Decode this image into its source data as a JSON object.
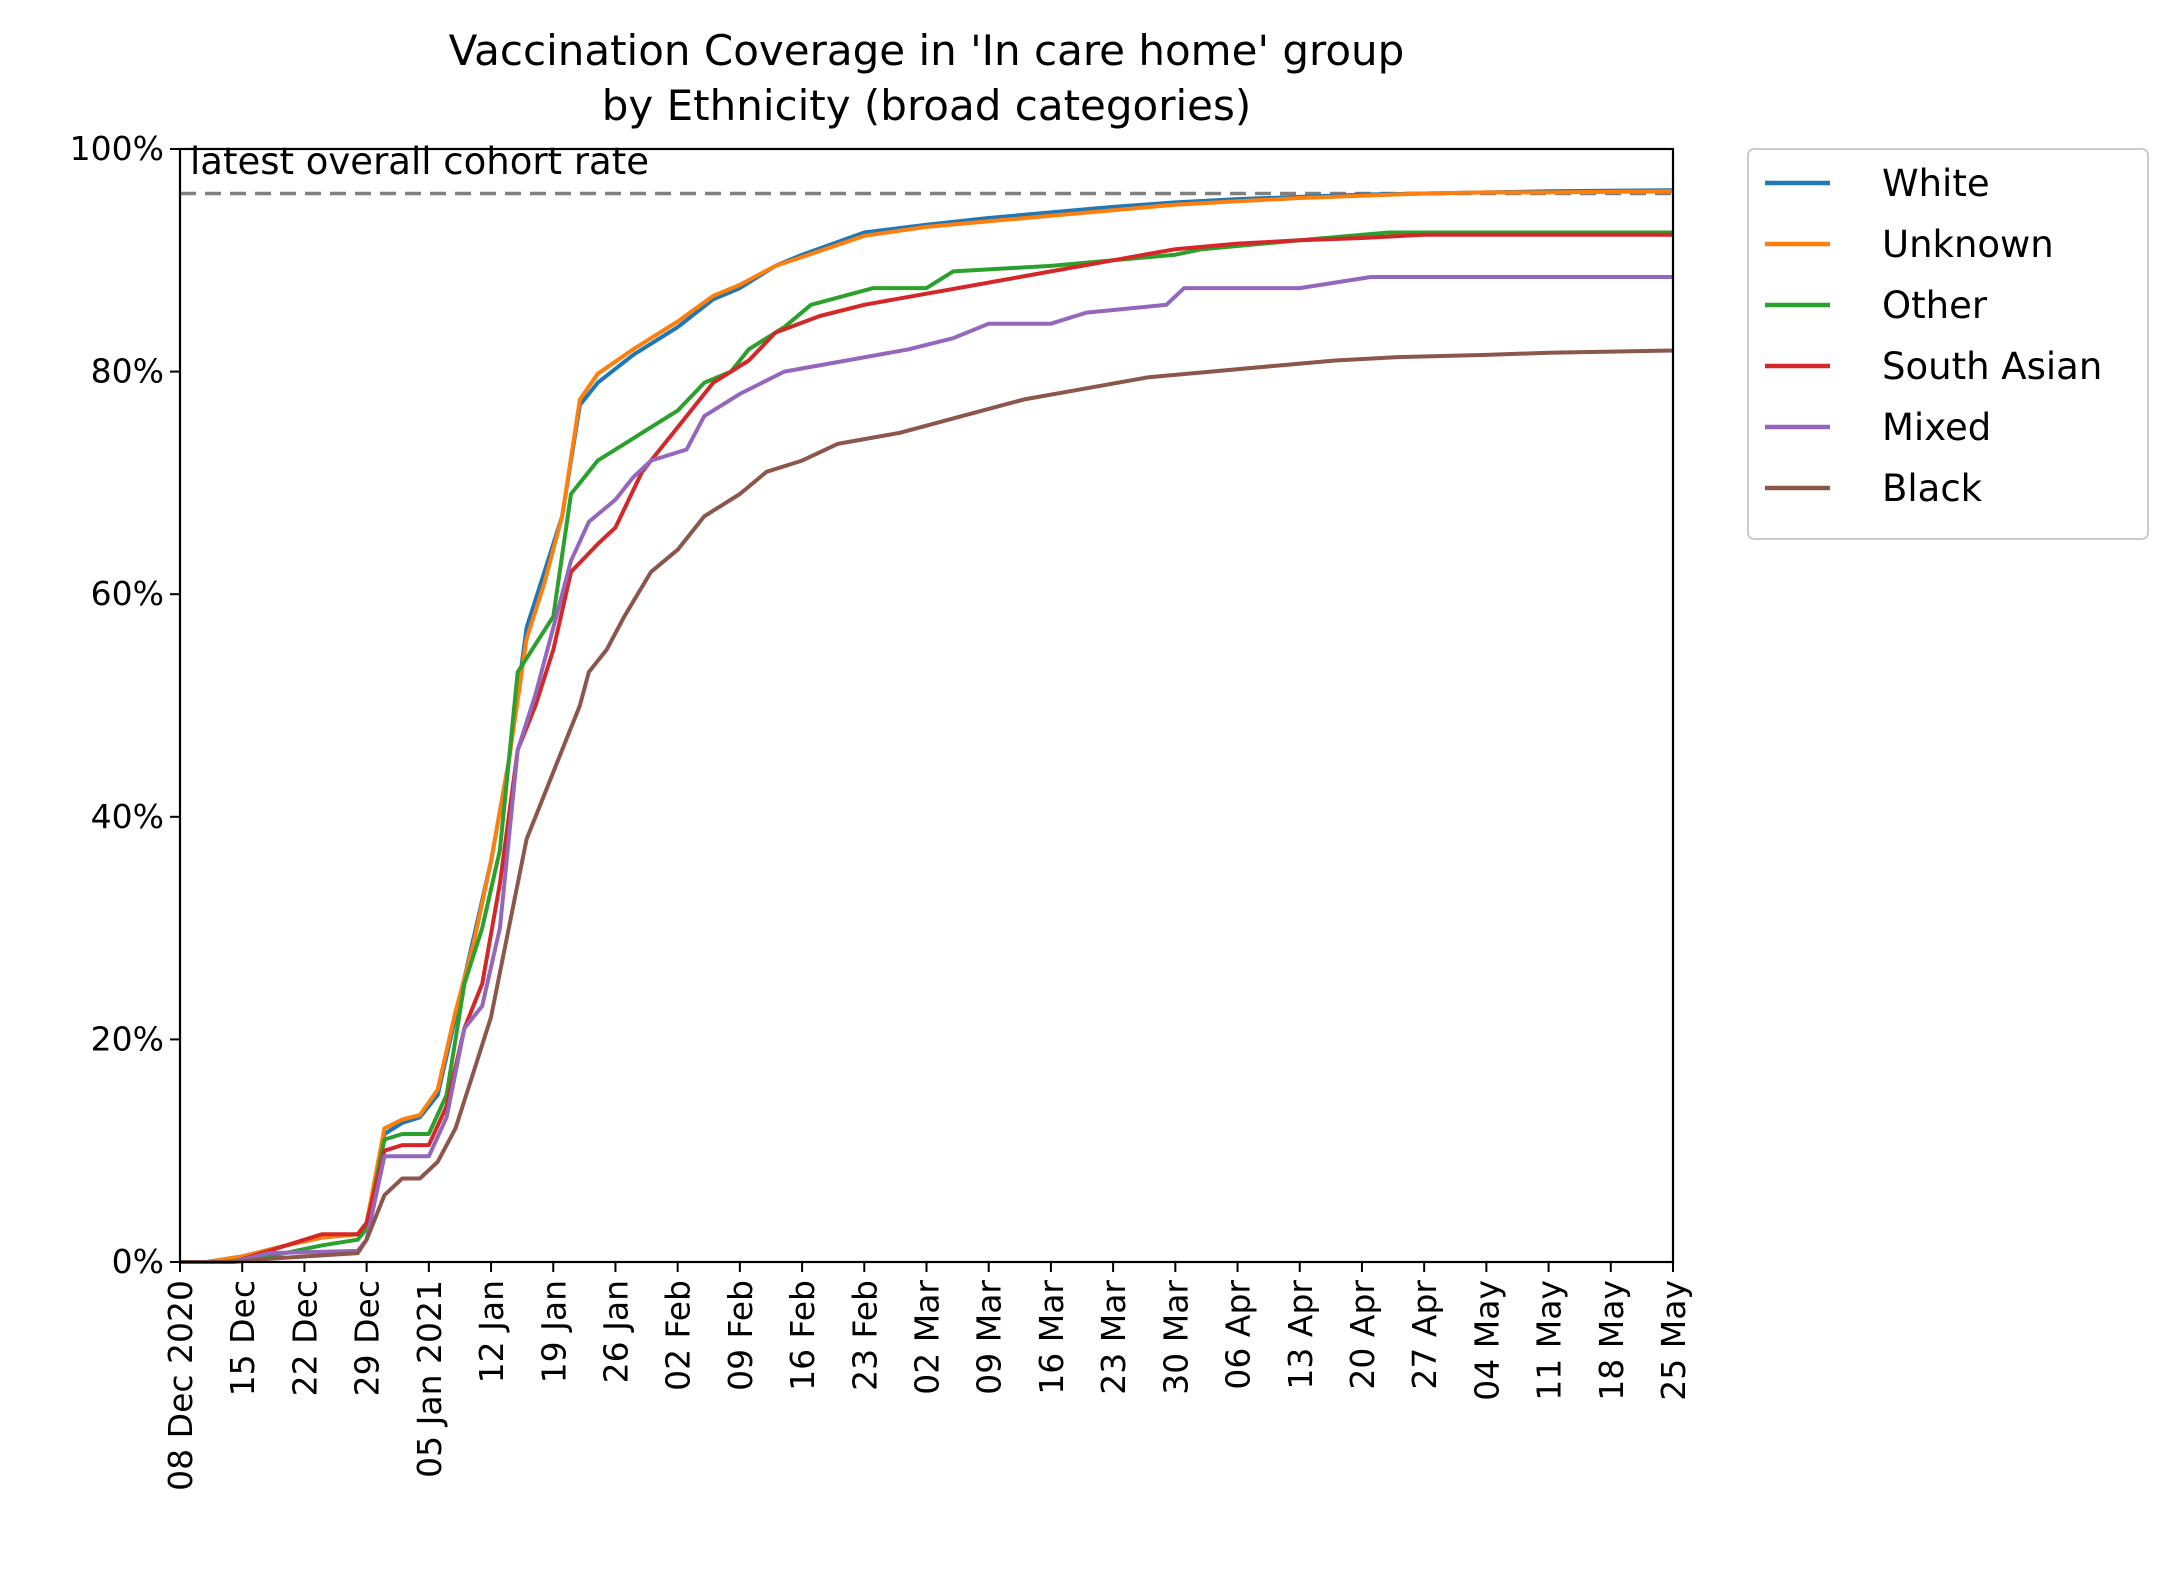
{
  "chart_data": {
    "type": "line",
    "title": "Vaccination Coverage in 'In care home' group",
    "subtitle": "by Ethnicity (broad categories)",
    "xlabel": "",
    "ylabel": "",
    "y_unit": "%",
    "ylim": [
      0,
      100
    ],
    "xlim": [
      "2020-12-08",
      "2021-05-25"
    ],
    "grid": false,
    "legend_position": "outside-right",
    "x_ticks": [
      {
        "date": "2020-12-08",
        "label": "08 Dec 2020"
      },
      {
        "date": "2020-12-15",
        "label": "15 Dec"
      },
      {
        "date": "2020-12-22",
        "label": "22 Dec"
      },
      {
        "date": "2020-12-29",
        "label": "29 Dec"
      },
      {
        "date": "2021-01-05",
        "label": "05 Jan 2021"
      },
      {
        "date": "2021-01-12",
        "label": "12 Jan"
      },
      {
        "date": "2021-01-19",
        "label": "19 Jan"
      },
      {
        "date": "2021-01-26",
        "label": "26 Jan"
      },
      {
        "date": "2021-02-02",
        "label": "02 Feb"
      },
      {
        "date": "2021-02-09",
        "label": "09 Feb"
      },
      {
        "date": "2021-02-16",
        "label": "16 Feb"
      },
      {
        "date": "2021-02-23",
        "label": "23 Feb"
      },
      {
        "date": "2021-03-02",
        "label": "02 Mar"
      },
      {
        "date": "2021-03-09",
        "label": "09 Mar"
      },
      {
        "date": "2021-03-16",
        "label": "16 Mar"
      },
      {
        "date": "2021-03-23",
        "label": "23 Mar"
      },
      {
        "date": "2021-03-30",
        "label": "30 Mar"
      },
      {
        "date": "2021-04-06",
        "label": "06 Apr"
      },
      {
        "date": "2021-04-13",
        "label": "13 Apr"
      },
      {
        "date": "2021-04-20",
        "label": "20 Apr"
      },
      {
        "date": "2021-04-27",
        "label": "27 Apr"
      },
      {
        "date": "2021-05-04",
        "label": "04 May"
      },
      {
        "date": "2021-05-11",
        "label": "11 May"
      },
      {
        "date": "2021-05-18",
        "label": "18 May"
      },
      {
        "date": "2021-05-25",
        "label": "25 May"
      }
    ],
    "y_ticks": [
      {
        "value": 0,
        "label": "0%"
      },
      {
        "value": 20,
        "label": "20%"
      },
      {
        "value": 40,
        "label": "40%"
      },
      {
        "value": 60,
        "label": "60%"
      },
      {
        "value": 80,
        "label": "80%"
      },
      {
        "value": 100,
        "label": "100%"
      }
    ],
    "reference_line": {
      "label": "latest overall cohort rate",
      "value": 96,
      "color": "#808080",
      "style": "dashed"
    },
    "series": [
      {
        "name": "White",
        "color": "#1f77b4",
        "points": [
          [
            "2020-12-08",
            0
          ],
          [
            "2020-12-11",
            0
          ],
          [
            "2020-12-15",
            0.5
          ],
          [
            "2020-12-20",
            1.5
          ],
          [
            "2020-12-24",
            2.2
          ],
          [
            "2020-12-28",
            2.5
          ],
          [
            "2020-12-29",
            3.5
          ],
          [
            "2020-12-31",
            11.5
          ],
          [
            "2021-01-02",
            12.5
          ],
          [
            "2021-01-04",
            13
          ],
          [
            "2021-01-06",
            15
          ],
          [
            "2021-01-08",
            22
          ],
          [
            "2021-01-10",
            29
          ],
          [
            "2021-01-12",
            36
          ],
          [
            "2021-01-14",
            45
          ],
          [
            "2021-01-16",
            57
          ],
          [
            "2021-01-18",
            62
          ],
          [
            "2021-01-20",
            67
          ],
          [
            "2021-01-22",
            77
          ],
          [
            "2021-01-24",
            79
          ],
          [
            "2021-01-28",
            81.5
          ],
          [
            "2021-02-02",
            84
          ],
          [
            "2021-02-06",
            86.5
          ],
          [
            "2021-02-09",
            87.5
          ],
          [
            "2021-02-13",
            89.5
          ],
          [
            "2021-02-16",
            90.5
          ],
          [
            "2021-02-23",
            92.5
          ],
          [
            "2021-03-02",
            93.2
          ],
          [
            "2021-03-09",
            93.8
          ],
          [
            "2021-03-16",
            94.3
          ],
          [
            "2021-03-23",
            94.8
          ],
          [
            "2021-03-30",
            95.2
          ],
          [
            "2021-04-06",
            95.5
          ],
          [
            "2021-04-13",
            95.7
          ],
          [
            "2021-04-20",
            95.9
          ],
          [
            "2021-04-27",
            96.0
          ],
          [
            "2021-05-04",
            96.1
          ],
          [
            "2021-05-11",
            96.2
          ],
          [
            "2021-05-25",
            96.3
          ]
        ]
      },
      {
        "name": "Unknown",
        "color": "#ff7f0e",
        "points": [
          [
            "2020-12-08",
            0
          ],
          [
            "2020-12-11",
            0
          ],
          [
            "2020-12-15",
            0.5
          ],
          [
            "2020-12-20",
            1.5
          ],
          [
            "2020-12-24",
            2.2
          ],
          [
            "2020-12-28",
            2.5
          ],
          [
            "2020-12-29",
            3.5
          ],
          [
            "2020-12-31",
            12
          ],
          [
            "2021-01-02",
            12.8
          ],
          [
            "2021-01-04",
            13.2
          ],
          [
            "2021-01-06",
            15.5
          ],
          [
            "2021-01-08",
            22.5
          ],
          [
            "2021-01-10",
            28.5
          ],
          [
            "2021-01-12",
            36
          ],
          [
            "2021-01-14",
            45
          ],
          [
            "2021-01-16",
            56
          ],
          [
            "2021-01-18",
            61
          ],
          [
            "2021-01-20",
            67
          ],
          [
            "2021-01-22",
            77.5
          ],
          [
            "2021-01-24",
            79.8
          ],
          [
            "2021-01-28",
            82
          ],
          [
            "2021-02-02",
            84.5
          ],
          [
            "2021-02-06",
            86.8
          ],
          [
            "2021-02-09",
            87.8
          ],
          [
            "2021-02-13",
            89.5
          ],
          [
            "2021-02-16",
            90.3
          ],
          [
            "2021-02-23",
            92.2
          ],
          [
            "2021-03-02",
            93
          ],
          [
            "2021-03-09",
            93.5
          ],
          [
            "2021-03-16",
            94
          ],
          [
            "2021-03-23",
            94.5
          ],
          [
            "2021-03-30",
            95
          ],
          [
            "2021-04-06",
            95.3
          ],
          [
            "2021-04-13",
            95.6
          ],
          [
            "2021-04-20",
            95.8
          ],
          [
            "2021-04-27",
            96.0
          ],
          [
            "2021-05-04",
            96.1
          ],
          [
            "2021-05-11",
            96.1
          ],
          [
            "2021-05-25",
            96.2
          ]
        ]
      },
      {
        "name": "Other",
        "color": "#2ca02c",
        "points": [
          [
            "2020-12-08",
            0
          ],
          [
            "2020-12-13",
            0
          ],
          [
            "2020-12-18",
            0.5
          ],
          [
            "2020-12-24",
            1.5
          ],
          [
            "2020-12-28",
            2
          ],
          [
            "2020-12-29",
            3
          ],
          [
            "2020-12-31",
            11
          ],
          [
            "2021-01-02",
            11.5
          ],
          [
            "2021-01-05",
            11.5
          ],
          [
            "2021-01-07",
            15
          ],
          [
            "2021-01-09",
            25
          ],
          [
            "2021-01-11",
            30
          ],
          [
            "2021-01-13",
            37
          ],
          [
            "2021-01-15",
            53
          ],
          [
            "2021-01-19",
            58
          ],
          [
            "2021-01-21",
            69
          ],
          [
            "2021-01-24",
            72
          ],
          [
            "2021-01-28",
            74
          ],
          [
            "2021-01-31",
            75.5
          ],
          [
            "2021-02-02",
            76.5
          ],
          [
            "2021-02-05",
            79
          ],
          [
            "2021-02-08",
            80
          ],
          [
            "2021-02-10",
            82
          ],
          [
            "2021-02-14",
            84
          ],
          [
            "2021-02-17",
            86
          ],
          [
            "2021-02-24",
            87.5
          ],
          [
            "2021-03-02",
            87.5
          ],
          [
            "2021-03-05",
            89
          ],
          [
            "2021-03-16",
            89.5
          ],
          [
            "2021-03-23",
            90
          ],
          [
            "2021-03-30",
            90.5
          ],
          [
            "2021-04-02",
            91
          ],
          [
            "2021-04-13",
            91.8
          ],
          [
            "2021-04-23",
            92.5
          ],
          [
            "2021-05-25",
            92.5
          ]
        ]
      },
      {
        "name": "South Asian",
        "color": "#d62728",
        "points": [
          [
            "2020-12-08",
            0
          ],
          [
            "2020-12-14",
            0
          ],
          [
            "2020-12-18",
            1
          ],
          [
            "2020-12-22",
            2
          ],
          [
            "2020-12-24",
            2.5
          ],
          [
            "2020-12-28",
            2.5
          ],
          [
            "2020-12-29",
            3.5
          ],
          [
            "2020-12-31",
            10
          ],
          [
            "2021-01-02",
            10.5
          ],
          [
            "2021-01-05",
            10.5
          ],
          [
            "2021-01-07",
            14
          ],
          [
            "2021-01-09",
            21
          ],
          [
            "2021-01-11",
            25
          ],
          [
            "2021-01-13",
            34
          ],
          [
            "2021-01-15",
            46
          ],
          [
            "2021-01-17",
            50
          ],
          [
            "2021-01-19",
            55
          ],
          [
            "2021-01-21",
            62
          ],
          [
            "2021-01-24",
            64.5
          ],
          [
            "2021-01-26",
            66
          ],
          [
            "2021-01-29",
            71
          ],
          [
            "2021-02-02",
            75
          ],
          [
            "2021-02-06",
            79
          ],
          [
            "2021-02-10",
            81
          ],
          [
            "2021-02-13",
            83.5
          ],
          [
            "2021-02-18",
            85
          ],
          [
            "2021-02-23",
            86
          ],
          [
            "2021-03-02",
            87
          ],
          [
            "2021-03-09",
            88
          ],
          [
            "2021-03-16",
            89
          ],
          [
            "2021-03-23",
            90
          ],
          [
            "2021-03-30",
            91
          ],
          [
            "2021-04-06",
            91.5
          ],
          [
            "2021-04-13",
            91.8
          ],
          [
            "2021-04-20",
            92
          ],
          [
            "2021-04-27",
            92.3
          ],
          [
            "2021-05-25",
            92.3
          ]
        ]
      },
      {
        "name": "Mixed",
        "color": "#9467bd",
        "points": [
          [
            "2020-12-08",
            0
          ],
          [
            "2020-12-14",
            0
          ],
          [
            "2020-12-18",
            0.8
          ],
          [
            "2020-12-28",
            1
          ],
          [
            "2020-12-29",
            2
          ],
          [
            "2020-12-31",
            9.5
          ],
          [
            "2021-01-03",
            9.5
          ],
          [
            "2021-01-05",
            9.5
          ],
          [
            "2021-01-07",
            13
          ],
          [
            "2021-01-09",
            21
          ],
          [
            "2021-01-11",
            23
          ],
          [
            "2021-01-13",
            30
          ],
          [
            "2021-01-15",
            46
          ],
          [
            "2021-01-17",
            51
          ],
          [
            "2021-01-19",
            57
          ],
          [
            "2021-01-21",
            63
          ],
          [
            "2021-01-23",
            66.5
          ],
          [
            "2021-01-26",
            68.5
          ],
          [
            "2021-01-28",
            70.5
          ],
          [
            "2021-01-30",
            72
          ],
          [
            "2021-02-03",
            73
          ],
          [
            "2021-02-05",
            76
          ],
          [
            "2021-02-09",
            78
          ],
          [
            "2021-02-14",
            80
          ],
          [
            "2021-02-21",
            81
          ],
          [
            "2021-02-28",
            82
          ],
          [
            "2021-03-05",
            83
          ],
          [
            "2021-03-09",
            84.3
          ],
          [
            "2021-03-16",
            84.3
          ],
          [
            "2021-03-20",
            85.3
          ],
          [
            "2021-03-29",
            86
          ],
          [
            "2021-03-31",
            87.5
          ],
          [
            "2021-04-13",
            87.5
          ],
          [
            "2021-04-21",
            88.5
          ],
          [
            "2021-05-25",
            88.5
          ]
        ]
      },
      {
        "name": "Black",
        "color": "#8c564b",
        "points": [
          [
            "2020-12-08",
            0
          ],
          [
            "2020-12-14",
            0
          ],
          [
            "2020-12-18",
            0.3
          ],
          [
            "2020-12-28",
            0.8
          ],
          [
            "2020-12-29",
            2
          ],
          [
            "2020-12-31",
            6
          ],
          [
            "2021-01-02",
            7.5
          ],
          [
            "2021-01-04",
            7.5
          ],
          [
            "2021-01-06",
            9
          ],
          [
            "2021-01-08",
            12
          ],
          [
            "2021-01-10",
            17
          ],
          [
            "2021-01-12",
            22
          ],
          [
            "2021-01-14",
            30
          ],
          [
            "2021-01-16",
            38
          ],
          [
            "2021-01-18",
            42
          ],
          [
            "2021-01-20",
            46
          ],
          [
            "2021-01-22",
            50
          ],
          [
            "2021-01-23",
            53
          ],
          [
            "2021-01-25",
            55
          ],
          [
            "2021-01-27",
            58
          ],
          [
            "2021-01-30",
            62
          ],
          [
            "2021-02-02",
            64
          ],
          [
            "2021-02-05",
            67
          ],
          [
            "2021-02-09",
            69
          ],
          [
            "2021-02-12",
            71
          ],
          [
            "2021-02-16",
            72
          ],
          [
            "2021-02-20",
            73.5
          ],
          [
            "2021-02-27",
            74.5
          ],
          [
            "2021-03-06",
            76
          ],
          [
            "2021-03-13",
            77.5
          ],
          [
            "2021-03-20",
            78.5
          ],
          [
            "2021-03-27",
            79.5
          ],
          [
            "2021-04-03",
            80
          ],
          [
            "2021-04-10",
            80.5
          ],
          [
            "2021-04-17",
            81
          ],
          [
            "2021-04-24",
            81.3
          ],
          [
            "2021-05-04",
            81.5
          ],
          [
            "2021-05-11",
            81.7
          ],
          [
            "2021-05-25",
            81.9
          ]
        ]
      }
    ]
  }
}
